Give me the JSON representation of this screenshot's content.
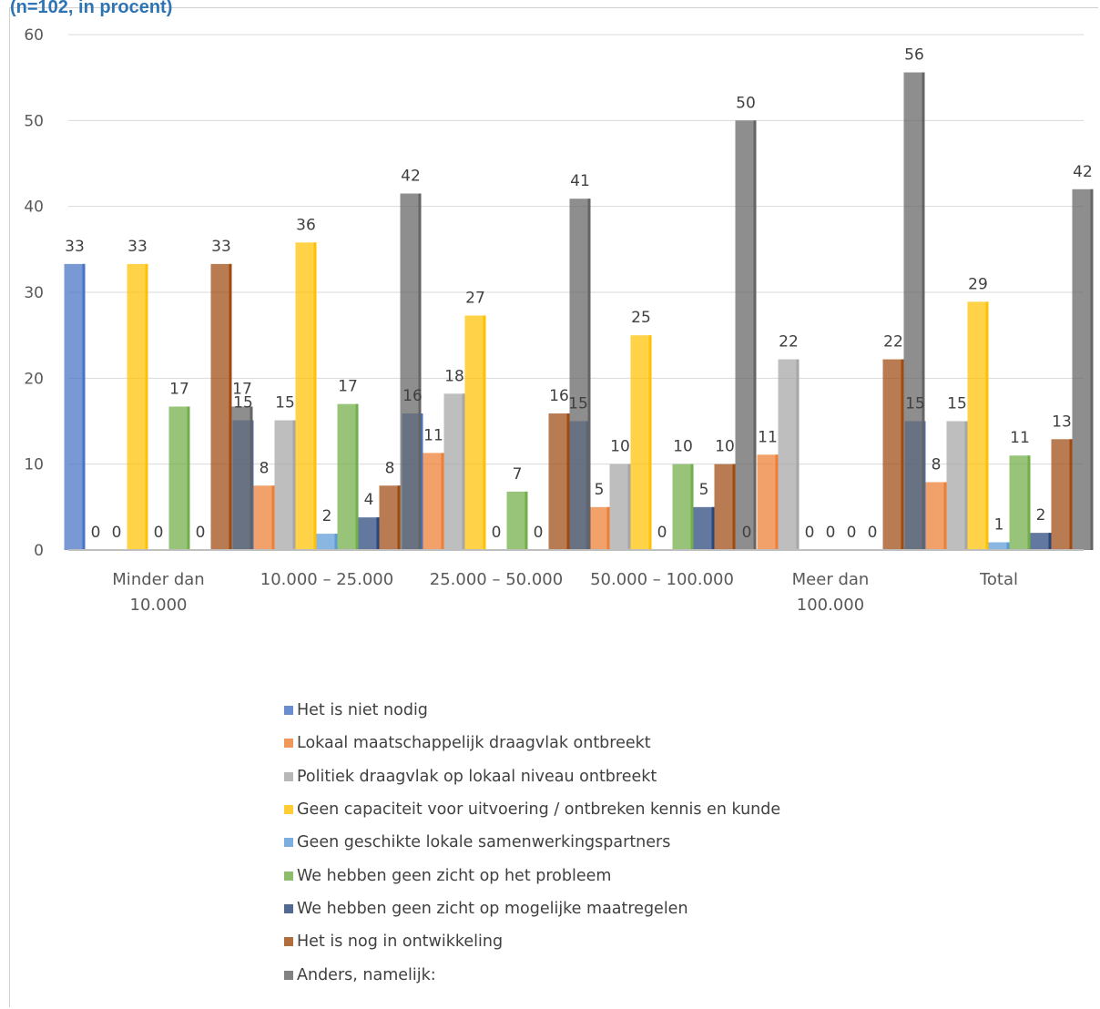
{
  "header": {
    "subtitle": "(n=102, in procent)"
  },
  "chart_data": {
    "type": "bar",
    "categories": [
      "Minder dan 10.000",
      "10.000 – 25.000",
      "25.000 – 50.000",
      "50.000 – 100.000",
      "Meer dan 100.000",
      "Total"
    ],
    "ylim": [
      0,
      60
    ],
    "yticks": [
      0,
      10,
      20,
      30,
      40,
      50,
      60
    ],
    "grid": true,
    "legend_position": "bottom",
    "series": [
      {
        "name": "Het is niet nodig",
        "color": "#4472c4",
        "values": [
          33.3,
          15.1,
          15.9,
          15.0,
          0,
          15.0
        ],
        "labels": [
          "33",
          "15",
          "16",
          "15",
          "0",
          "15"
        ]
      },
      {
        "name": "Lokaal maatschappelijk draagvlak ontbreekt",
        "color": "#ed7d31",
        "values": [
          0,
          7.5,
          11.3,
          5.0,
          11.1,
          7.9
        ],
        "labels": [
          "0",
          "8",
          "11",
          "5",
          "11",
          "8"
        ]
      },
      {
        "name": "Politiek draagvlak op lokaal niveau ontbreekt",
        "color": "#a5a5a5",
        "values": [
          0,
          15.1,
          18.2,
          10.0,
          22.2,
          15.0
        ],
        "labels": [
          "0",
          "15",
          "18",
          "10",
          "22",
          "15"
        ]
      },
      {
        "name": "Geen capaciteit voor uitvoering / ontbreken kennis en kunde",
        "color": "#ffc000",
        "values": [
          33.3,
          35.8,
          27.3,
          25.0,
          0,
          28.9
        ],
        "labels": [
          "33",
          "36",
          "27",
          "25",
          "0",
          "29"
        ]
      },
      {
        "name": "Geen geschikte lokale samenwerkingspartners",
        "color": "#5b9bd5",
        "values": [
          0,
          1.9,
          0,
          0,
          0,
          0.9
        ],
        "labels": [
          "0",
          "2",
          "0",
          "0",
          "0",
          "1"
        ]
      },
      {
        "name": "We hebben geen zicht op het probleem",
        "color": "#70ad47",
        "values": [
          16.7,
          17.0,
          6.8,
          10.0,
          0,
          11.0
        ],
        "labels": [
          "17",
          "17",
          "7",
          "10",
          "0",
          "11"
        ]
      },
      {
        "name": "We hebben geen zicht op mogelijke maatregelen",
        "color": "#264478",
        "values": [
          0,
          3.8,
          0,
          5.0,
          0,
          2.0
        ],
        "labels": [
          "0",
          "4",
          "0",
          "5",
          "0",
          "2"
        ]
      },
      {
        "name": "Het is nog in ontwikkeling",
        "color": "#9e480e",
        "values": [
          33.3,
          7.5,
          15.9,
          10.0,
          22.2,
          12.9
        ],
        "labels": [
          "33",
          "8",
          "16",
          "10",
          "22",
          "13"
        ]
      },
      {
        "name": "Anders, namelijk:",
        "color": "#636363",
        "values": [
          16.7,
          41.5,
          40.9,
          50.0,
          55.6,
          42.0
        ],
        "labels": [
          "17",
          "42",
          "41",
          "50",
          "56",
          "42"
        ]
      }
    ]
  }
}
